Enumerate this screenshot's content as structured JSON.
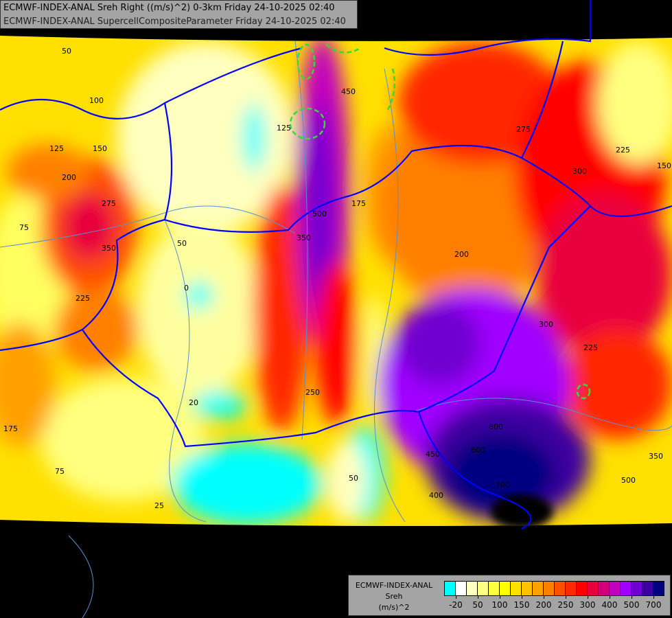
{
  "header": {
    "line1": "ECMWF-INDEX-ANAL Sreh Right ((m/s)^2) 0-3km Friday 24-10-2025 02:40",
    "line2": "ECMWF-INDEX-ANAL SupercellCompositeParameter Friday 24-10-2025 02:40"
  },
  "legend": {
    "model": "ECMWF-INDEX-ANAL",
    "variable": "Sreh",
    "unit": "(m/s)^2",
    "colors": [
      "#00ffff",
      "#ffffff",
      "#ffffc0",
      "#ffff80",
      "#ffff40",
      "#ffff00",
      "#ffe000",
      "#ffc000",
      "#ffa000",
      "#ff8000",
      "#ff5000",
      "#ff2800",
      "#ff0000",
      "#e8003c",
      "#d0007c",
      "#c000c0",
      "#a000ff",
      "#7000d0",
      "#3c00a0",
      "#000080"
    ],
    "ticks": [
      "-20",
      "50",
      "100",
      "150",
      "200",
      "250",
      "300",
      "400",
      "500",
      "700"
    ]
  },
  "contour_labels": [
    "50",
    "100",
    "125",
    "150",
    "200",
    "275",
    "350",
    "225",
    "75",
    "175",
    "20",
    "0",
    "50",
    "450",
    "500",
    "350",
    "125",
    "175",
    "200",
    "250",
    "300",
    "275",
    "225",
    "150",
    "300",
    "600",
    "700",
    "450",
    "400",
    "50",
    "225",
    "500",
    "350",
    "800",
    "75",
    "25"
  ],
  "colors": {
    "border": "#0000ff",
    "rivers": "#5a8fd0",
    "scp_contour": "#33dd33",
    "background": "#000000"
  }
}
